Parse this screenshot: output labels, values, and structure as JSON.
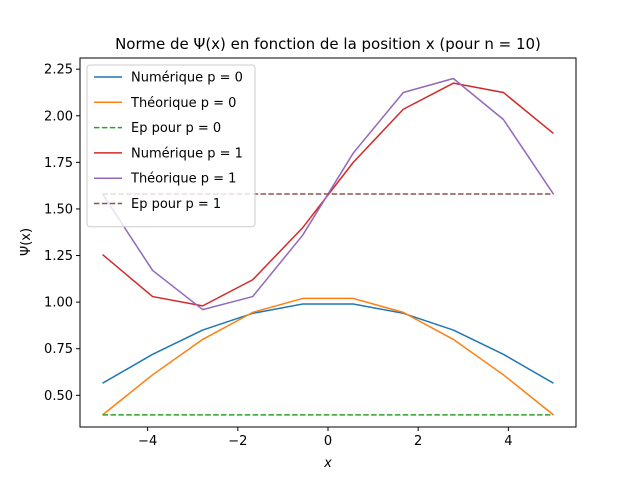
{
  "chart_data": {
    "type": "line",
    "title": "Norme de Ψ(x) en fonction de la position x (pour n = 10)",
    "xlabel": "x",
    "ylabel": "Ψ(x)",
    "xlim": [
      -5.5,
      5.5
    ],
    "ylim": [
      0.33,
      2.31
    ],
    "xticks": [
      -4,
      -2,
      0,
      2,
      4
    ],
    "xtick_labels": [
      "−4",
      "−2",
      "0",
      "2",
      "4"
    ],
    "yticks": [
      0.5,
      0.75,
      1.0,
      1.25,
      1.5,
      1.75,
      2.0,
      2.25
    ],
    "ytick_labels": [
      "0.50",
      "0.75",
      "1.00",
      "1.25",
      "1.50",
      "1.75",
      "2.00",
      "2.25"
    ],
    "legend_position": "top-left",
    "grid": false,
    "x": [
      -5.0,
      -3.89,
      -2.78,
      -1.67,
      -0.56,
      0.56,
      1.67,
      2.78,
      3.89,
      5.0
    ],
    "series": [
      {
        "name": "Numérique p = 0",
        "color": "#1f77b4",
        "dash": false,
        "values": [
          0.565,
          0.72,
          0.85,
          0.94,
          0.99,
          0.99,
          0.94,
          0.85,
          0.72,
          0.565
        ]
      },
      {
        "name": "Théorique p = 0",
        "color": "#ff7f0e",
        "dash": false,
        "values": [
          0.395,
          0.61,
          0.8,
          0.945,
          1.02,
          1.02,
          0.945,
          0.8,
          0.61,
          0.395
        ]
      },
      {
        "name": "Ep pour p = 0",
        "color": "#2ca02c",
        "dash": true,
        "values": [
          0.395,
          0.395,
          0.395,
          0.395,
          0.395,
          0.395,
          0.395,
          0.395,
          0.395,
          0.395
        ]
      },
      {
        "name": "Numérique p = 1",
        "color": "#d62728",
        "dash": false,
        "values": [
          1.255,
          1.03,
          0.98,
          1.12,
          1.4,
          1.75,
          2.035,
          2.175,
          2.125,
          1.905
        ]
      },
      {
        "name": "Théorique p = 1",
        "color": "#9467bd",
        "dash": false,
        "values": [
          1.58,
          1.17,
          0.96,
          1.03,
          1.36,
          1.8,
          2.125,
          2.2,
          1.98,
          1.58
        ]
      },
      {
        "name": "Ep pour p = 1",
        "color": "#8c564b",
        "dash": true,
        "values": [
          1.58,
          1.58,
          1.58,
          1.58,
          1.58,
          1.58,
          1.58,
          1.58,
          1.58,
          1.58
        ]
      }
    ]
  }
}
